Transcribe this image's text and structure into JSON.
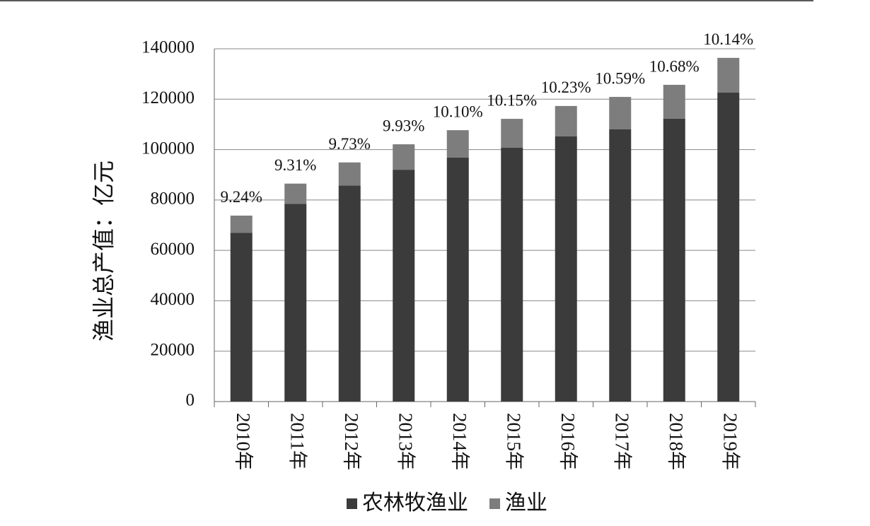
{
  "chart_data": {
    "type": "stacked_bar",
    "y_label": "渔业总产值：亿元",
    "categories": [
      "2010年",
      "2011年",
      "2012年",
      "2013年",
      "2014年",
      "2015年",
      "2016年",
      "2017年",
      "2018年",
      "2019年"
    ],
    "series": [
      {
        "name": "农林牧渔业",
        "color": "#3b3b3b",
        "values": [
          67000,
          78500,
          85700,
          92000,
          96800,
          100800,
          105300,
          108100,
          112300,
          122600
        ]
      },
      {
        "name": "渔业",
        "color": "#7d7d7d",
        "values": [
          6800,
          8000,
          9200,
          10100,
          10900,
          11400,
          12000,
          12800,
          13400,
          13800
        ]
      }
    ],
    "annotations": [
      "9.24%",
      "9.31%",
      "9.73%",
      "9.93%",
      "10.10%",
      "10.15%",
      "10.23%",
      "10.59%",
      "10.68%",
      "10.14%"
    ],
    "ylim": [
      0,
      140000
    ],
    "yticks": [
      0,
      20000,
      40000,
      60000,
      80000,
      100000,
      120000,
      140000
    ],
    "grid": true
  }
}
